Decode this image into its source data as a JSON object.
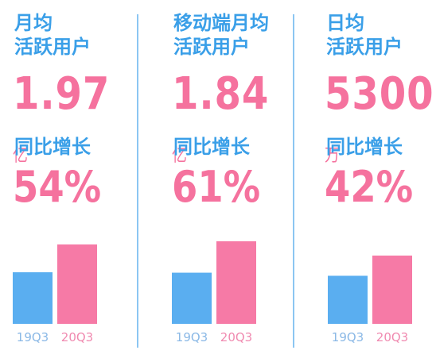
{
  "colors": {
    "blue": "#5aaef0",
    "pink": "#f67aa6",
    "title_blue": "#3a9fe8",
    "number_pink": "#f5729e",
    "tick_blue": "#8ab8e6",
    "tick_pink": "#f08ab0"
  },
  "chart_data": [
    {
      "type": "bar",
      "metric_title": "月均\n活跃用户",
      "value": "1.97",
      "unit": "亿",
      "growth_label": "同比增长",
      "growth": "54%",
      "categories": [
        "19Q3",
        "20Q3"
      ],
      "values": [
        1.28,
        1.97
      ]
    },
    {
      "type": "bar",
      "metric_title": "移动端月均\n活跃用户",
      "value": "1.84",
      "unit": "亿",
      "growth_label": "同比增长",
      "growth": "61%",
      "categories": [
        "19Q3",
        "20Q3"
      ],
      "values": [
        1.14,
        1.84
      ]
    },
    {
      "type": "bar",
      "metric_title": "日均\n活跃用户",
      "value": "5300",
      "unit": "万",
      "growth_label": "同比增长",
      "growth": "42%",
      "categories": [
        "19Q3",
        "20Q3"
      ],
      "values": [
        3732,
        5300
      ]
    }
  ]
}
